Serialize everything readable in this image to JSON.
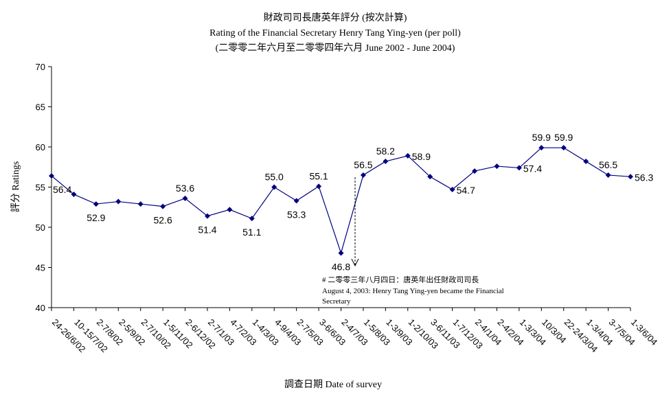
{
  "chart_data": {
    "type": "line",
    "title": "財政司司長唐英年評分 (按次計算)",
    "subtitle": "Rating of the Financial Secretary Henry Tang Ying-yen  (per poll)",
    "subtitle2": "(二零零二年六月至二零零四年六月 June 2002 - June 2004)",
    "xlabel": "調查日期 Date of survey",
    "ylabel": "評分 Ratings",
    "ylim": [
      40,
      70
    ],
    "yticks": [
      "70",
      "65",
      "60",
      "55",
      "50",
      "45",
      "40"
    ],
    "grid": false,
    "categories": [
      "24-26/6/02",
      "10-15/7/02",
      "2-7/8/02",
      "2-5/9/02",
      "2-7/10/02",
      "1-5/11/02",
      "2-6/12/02",
      "2-7/1/03",
      "4-7/2/03",
      "1-4/3/03",
      "4-9/4/03",
      "2-7/5/03",
      "3-6/6/03",
      "2-4/7/03",
      "1-5/8/03",
      "1-3/9/03",
      "1-2/10/03",
      "3-6/11/03",
      "1-7/12/03",
      "2-4/1/04",
      "2-4/2/04",
      "1-3/3/04",
      "10/3/04",
      "22-24/3/04",
      "1-3/4/04",
      "3-7/5/04",
      "1-3/6/04"
    ],
    "series": [
      {
        "values": [
          56.4,
          54.1,
          52.9,
          53.2,
          52.9,
          52.6,
          53.6,
          51.4,
          52.2,
          51.1,
          55.0,
          53.3,
          55.1,
          46.8,
          56.5,
          58.2,
          58.9,
          56.3,
          54.7,
          57.0,
          57.6,
          57.4,
          59.9,
          59.9,
          58.2,
          56.5,
          56.3
        ],
        "labels": [
          "56.4",
          "",
          "52.9",
          "",
          "",
          "52.6",
          "53.6",
          "51.4",
          "",
          "51.1",
          "55.0",
          "53.3",
          "55.1",
          "46.8",
          "56.5",
          "58.2",
          "58.9",
          "",
          "54.7",
          "",
          "",
          "57.4",
          "59.9",
          "59.9",
          "",
          "56.5",
          "56.3"
        ],
        "color": "#000080"
      }
    ],
    "annotation": {
      "line1": "# 二零零三年八月四日：唐英年出任財政司司長",
      "line2": "August 4, 2003: Henry Tang Ying-yen became the Financial",
      "line3": "Secretary"
    }
  }
}
